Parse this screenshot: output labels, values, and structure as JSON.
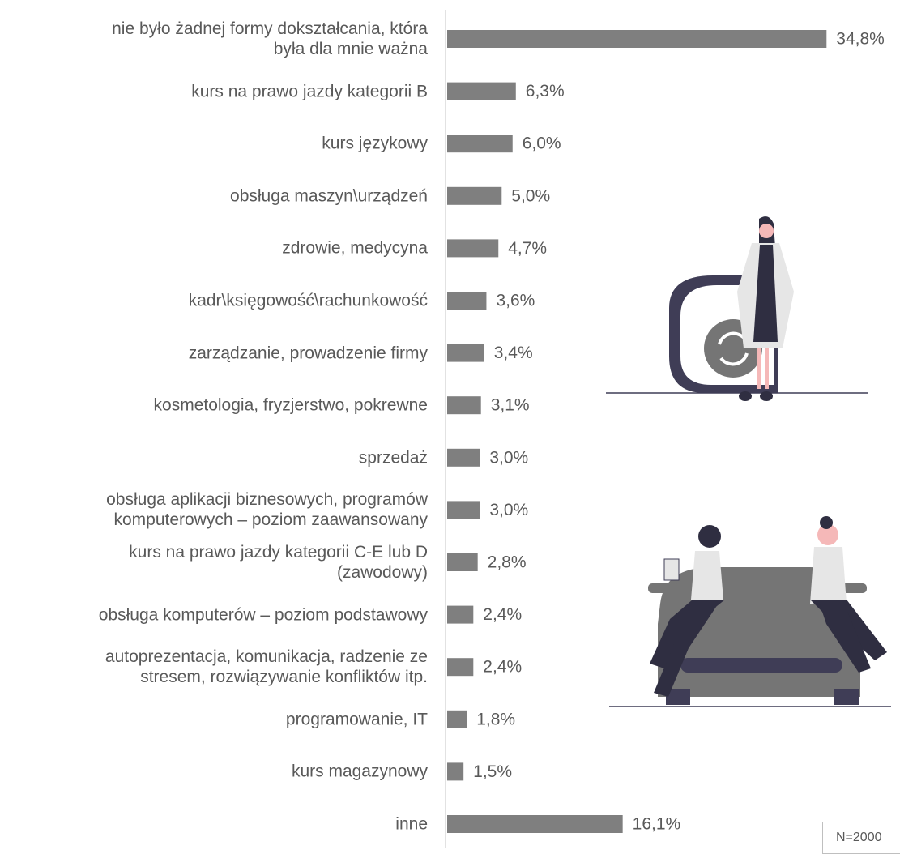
{
  "chart_data": {
    "type": "bar",
    "orientation": "horizontal",
    "categories": [
      "nie było żadnej formy dokształcania, która\nbyła dla mnie ważna",
      "kurs na prawo jazdy kategorii B",
      "kurs językowy",
      "obsługa maszyn\\urządzeń",
      "zdrowie, medycyna",
      "kadr\\księgowość\\rachunkowość",
      "zarządzanie, prowadzenie firmy",
      "kosmetologia, fryzjerstwo, pokrewne",
      "sprzedaż",
      "obsługa aplikacji biznesowych, programów\nkomputerowych – poziom zaawansowany",
      "kurs na prawo jazdy kategorii C-E lub D\n(zawodowy)",
      "obsługa komputerów – poziom podstawowy",
      "autoprezentacja, komunikacja, radzenie ze\nstresem, rozwiązywanie konfliktów itp.",
      "programowanie, IT",
      "kurs magazynowy",
      "inne"
    ],
    "values": [
      34.8,
      6.3,
      6.0,
      5.0,
      4.7,
      3.6,
      3.4,
      3.1,
      3.0,
      3.0,
      2.8,
      2.4,
      2.4,
      1.8,
      1.5,
      16.1
    ],
    "value_labels": [
      "34,8%",
      "6,3%",
      "6,0%",
      "5,0%",
      "4,7%",
      "3,6%",
      "3,4%",
      "3,1%",
      "3,0%",
      "3,0%",
      "2,8%",
      "2,4%",
      "2,4%",
      "1,8%",
      "1,5%",
      "16,1%"
    ],
    "color": "#7f7f7f",
    "xlim": [
      0,
      35
    ],
    "note": "N=2000"
  }
}
